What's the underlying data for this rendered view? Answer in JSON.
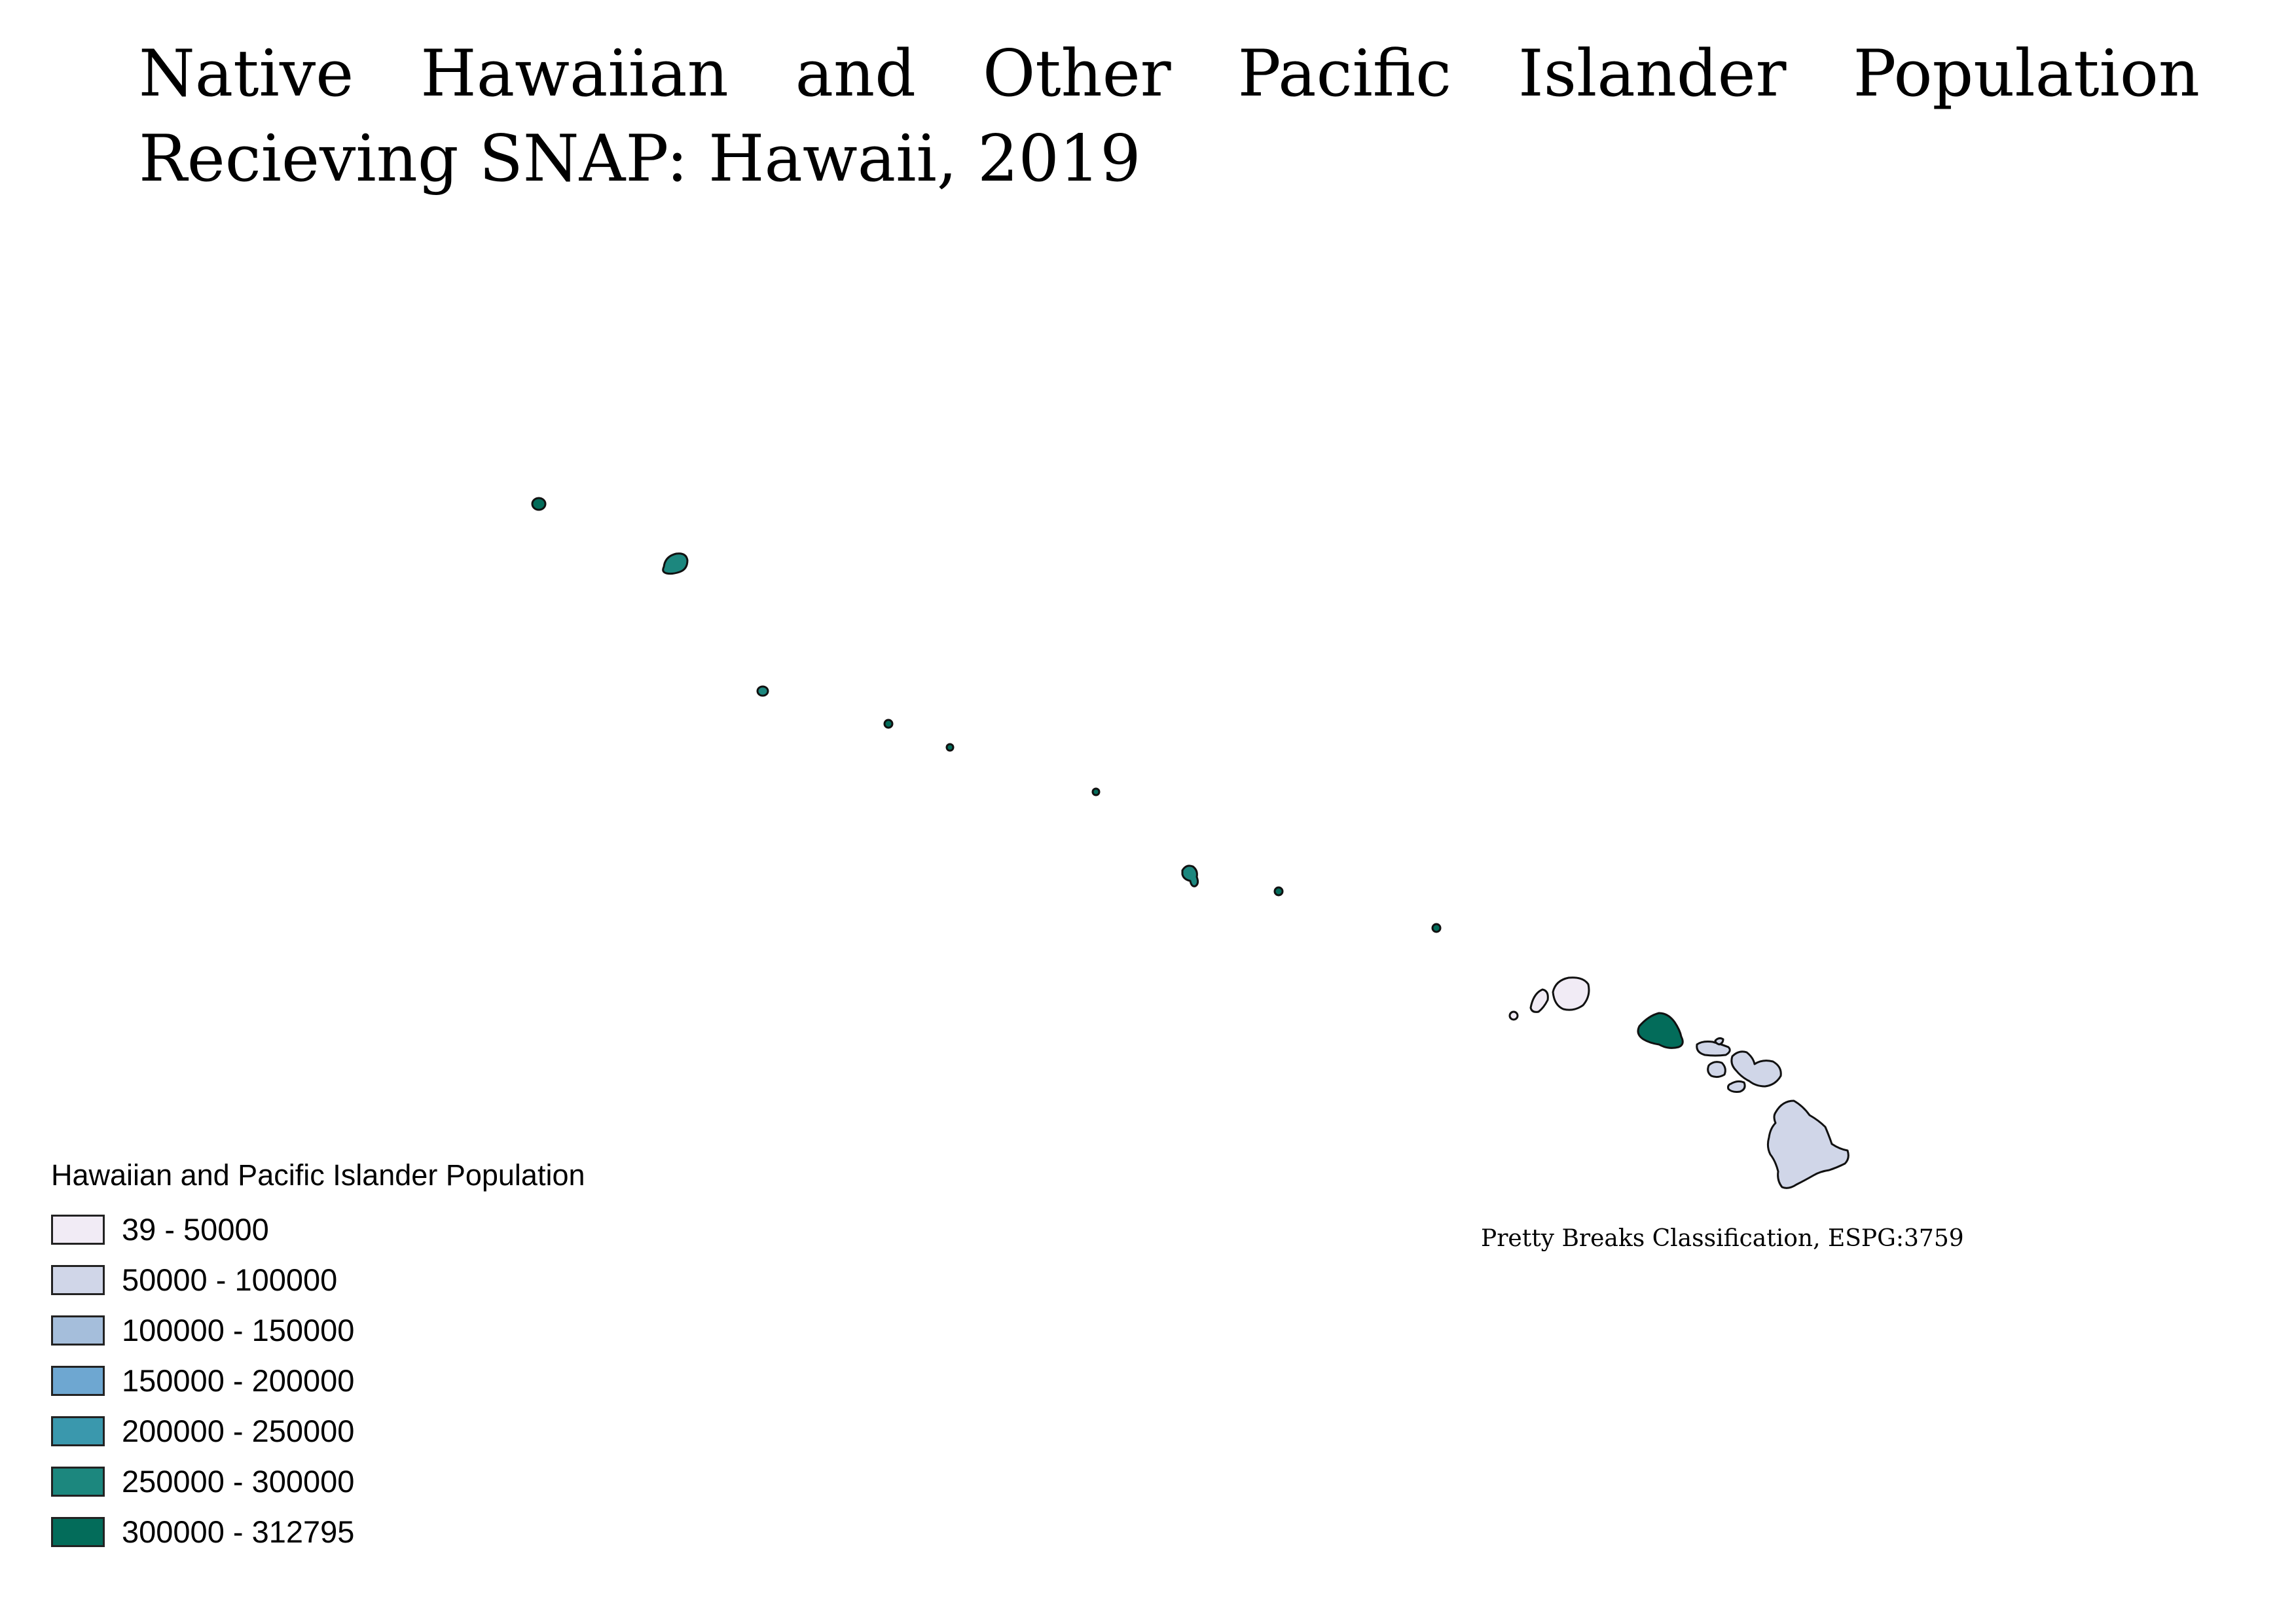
{
  "title": {
    "line1_words": [
      "Native",
      "Hawaiian",
      "and",
      "Other",
      "Pacific",
      "Islander",
      "Population"
    ],
    "line2": "Recieving SNAP: Hawaii, 2019"
  },
  "credit": "Pretty Breaks Classification,  ESPG:3759",
  "legend": {
    "title": "Hawaiian and Pacific Islander Population",
    "items": [
      {
        "label": "39 - 50000",
        "color": "#f1ebf5"
      },
      {
        "label": "50000 - 100000",
        "color": "#d0d6e8"
      },
      {
        "label": "100000 - 150000",
        "color": "#a5bedb"
      },
      {
        "label": "150000 - 200000",
        "color": "#6ea7d1"
      },
      {
        "label": "200000 - 250000",
        "color": "#3a98ad"
      },
      {
        "label": "250000 - 300000",
        "color": "#1c877e"
      },
      {
        "label": "300000 - 312795",
        "color": "#036c5a"
      }
    ]
  },
  "map": {
    "background": "#ffffff",
    "outline_color": "#111111"
  }
}
